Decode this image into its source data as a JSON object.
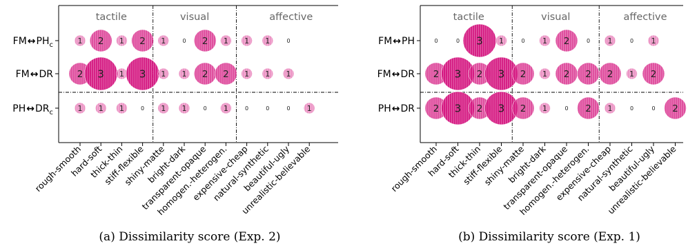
{
  "colors": {
    "bubble_fill": "#d4157f",
    "bubble_stroke": "#ffffff",
    "frame": "#000000",
    "group_label": "#666666"
  },
  "chart_data": [
    {
      "type": "bubble-matrix",
      "caption": "(a) Dissimilarity score (Exp. 2)",
      "groups": [
        "tactile",
        "visual",
        "affective"
      ],
      "categories": [
        "rough-smooth",
        "hard-soft",
        "thick-thin",
        "stiff-flexible",
        "shiny-matte",
        "bright-dark",
        "transparent-opaque",
        "homogen.-heterogen.",
        "expensive-cheap",
        "natural-synthetic",
        "beautiful-ugly",
        "unrealistic-believable"
      ],
      "rows": [
        {
          "label": "FM↔PHc",
          "label_main": "FM",
          "label_sep": "↔",
          "label_rest": "PH",
          "label_sub": "c",
          "values": [
            1,
            2,
            1,
            2,
            1,
            0,
            2,
            1,
            1,
            1,
            0,
            null
          ]
        },
        {
          "label": "FM↔DR",
          "label_main": "FM",
          "label_sep": "↔",
          "label_rest": "DR",
          "label_sub": "",
          "values": [
            2,
            3,
            1,
            3,
            1,
            1,
            2,
            2,
            1,
            1,
            1,
            null
          ]
        },
        {
          "label": "PHc↔DR",
          "label_main": "PH",
          "label_sep": "↔",
          "label_rest": "DR",
          "label_sub": "c",
          "values": [
            1,
            1,
            1,
            0,
            1,
            1,
            0,
            1,
            0,
            0,
            0,
            1
          ]
        }
      ],
      "value_range": [
        0,
        3
      ]
    },
    {
      "type": "bubble-matrix",
      "caption": "(b) Dissimilarity score (Exp. 1)",
      "groups": [
        "tactile",
        "visual",
        "affective"
      ],
      "categories": [
        "rough-smooth",
        "hard-soft",
        "thick-thin",
        "stiff-flexible",
        "shiny-matte",
        "bright-dark",
        "transparent-opaque",
        "homogen.-heterogen.",
        "expensive-cheap",
        "natural-synthetic",
        "beautiful-ugly",
        "unrealistic-believable"
      ],
      "rows": [
        {
          "label": "FM↔PH",
          "label_main": "FM",
          "label_sep": "↔",
          "label_rest": "PH",
          "label_sub": "",
          "values": [
            0,
            0,
            3,
            1,
            0,
            1,
            2,
            0,
            1,
            0,
            1,
            null
          ]
        },
        {
          "label": "FM↔DR",
          "label_main": "FM",
          "label_sep": "↔",
          "label_rest": "DR",
          "label_sub": "",
          "values": [
            2,
            3,
            2,
            3,
            2,
            1,
            2,
            2,
            2,
            1,
            2,
            null
          ]
        },
        {
          "label": "PH↔DR",
          "label_main": "PH",
          "label_sep": "↔",
          "label_rest": "DR",
          "label_sub": "",
          "values": [
            2,
            3,
            2,
            3,
            2,
            1,
            0,
            2,
            1,
            0,
            0,
            2
          ]
        }
      ],
      "value_range": [
        0,
        3
      ]
    }
  ]
}
